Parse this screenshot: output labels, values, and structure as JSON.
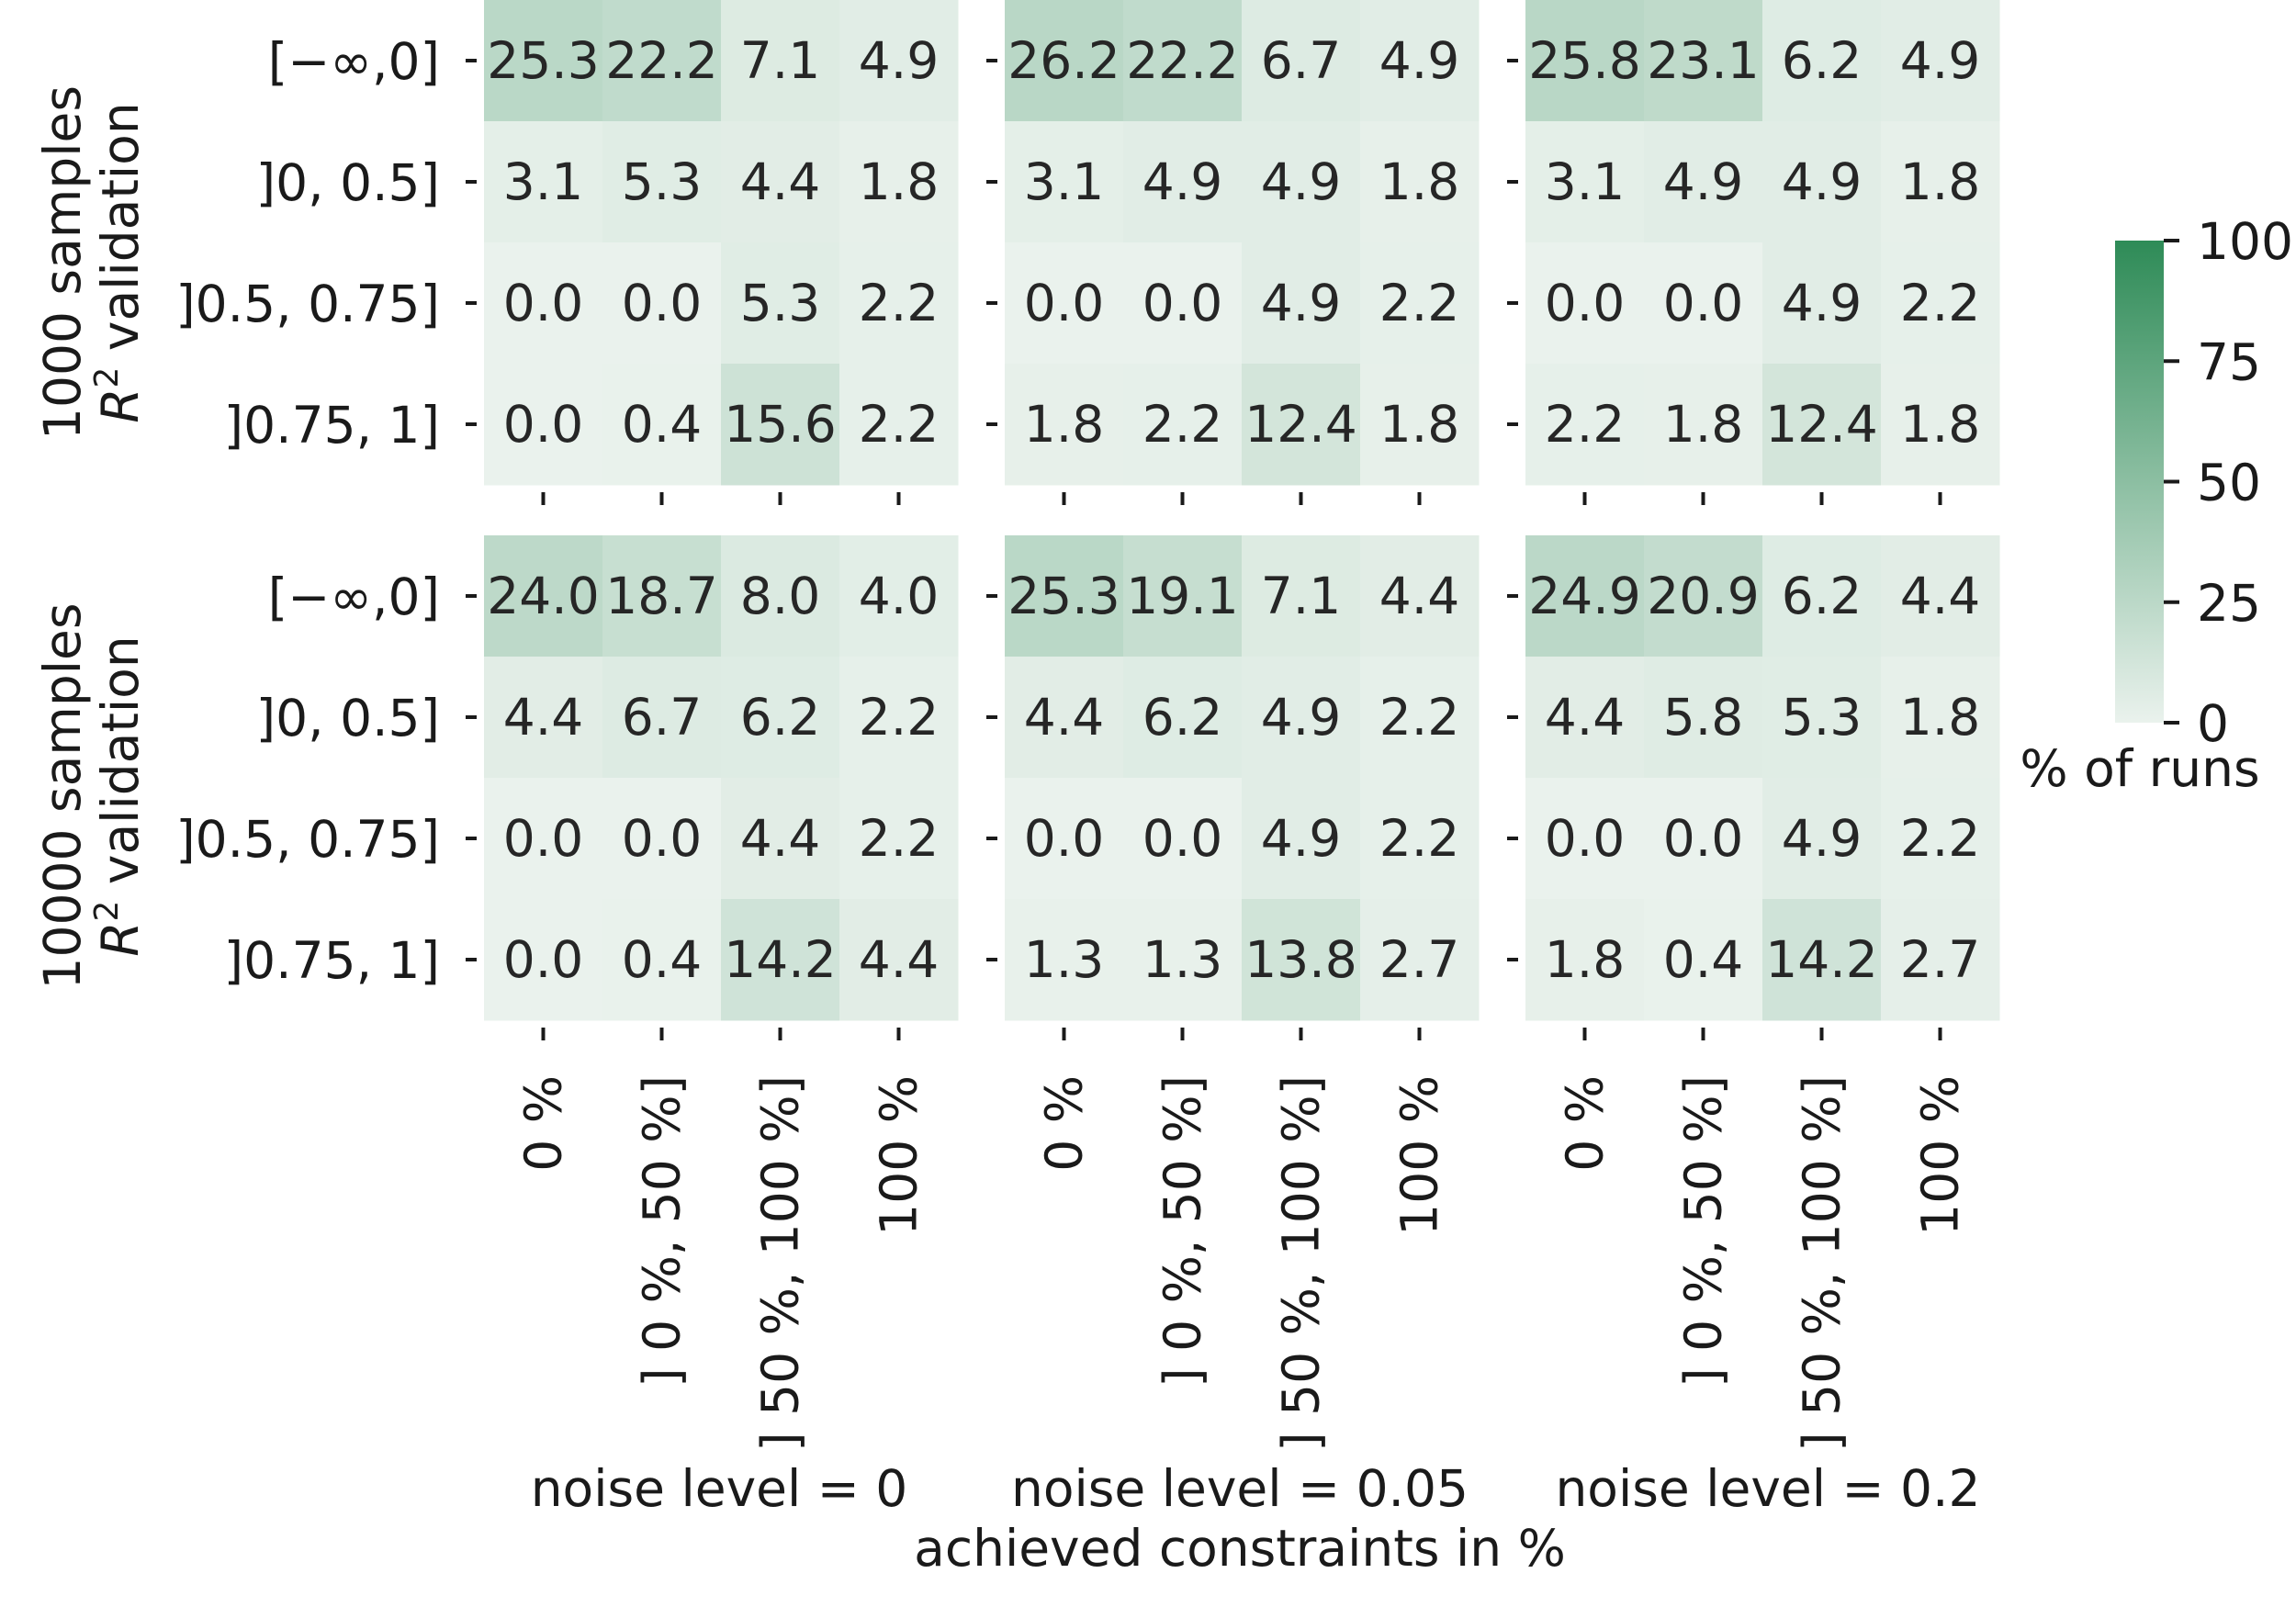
{
  "chart_data": {
    "type": "heatmap",
    "xlabel": "achieved constraints in %",
    "x_tick_labels": [
      "0 %",
      "] 0 %, 50 %]",
      "] 50 %, 100 %]",
      "100 %"
    ],
    "y_tick_labels": [
      "[−∞,0]",
      "]0, 0.5]",
      "]0.5, 0.75]",
      "]0.75, 1]"
    ],
    "col_titles": [
      "noise level = 0",
      "noise level = 0.05",
      "noise level = 0.2"
    ],
    "row_titles": [
      {
        "line1": "1000 samples",
        "line2": "validation"
      },
      {
        "line1": "10000 samples",
        "line2": "validation"
      }
    ],
    "row_title_math": {
      "base": "R",
      "sup": "2"
    },
    "colorbar": {
      "label": "% of runs",
      "ticks": [
        "0",
        "25",
        "50",
        "75",
        "100"
      ],
      "range": [
        0,
        100
      ],
      "color_low": "#eaf2ed",
      "color_high": "#2e8b57"
    },
    "panels": [
      [
        [
          [
            25.3,
            22.2,
            7.1,
            4.9
          ],
          [
            3.1,
            5.3,
            4.4,
            1.8
          ],
          [
            0.0,
            0.0,
            5.3,
            2.2
          ],
          [
            0.0,
            0.4,
            15.6,
            2.2
          ]
        ],
        [
          [
            26.2,
            22.2,
            6.7,
            4.9
          ],
          [
            3.1,
            4.9,
            4.9,
            1.8
          ],
          [
            0.0,
            0.0,
            4.9,
            2.2
          ],
          [
            1.8,
            2.2,
            12.4,
            1.8
          ]
        ],
        [
          [
            25.8,
            23.1,
            6.2,
            4.9
          ],
          [
            3.1,
            4.9,
            4.9,
            1.8
          ],
          [
            0.0,
            0.0,
            4.9,
            2.2
          ],
          [
            2.2,
            1.8,
            12.4,
            1.8
          ]
        ]
      ],
      [
        [
          [
            24.0,
            18.7,
            8.0,
            4.0
          ],
          [
            4.4,
            6.7,
            6.2,
            2.2
          ],
          [
            0.0,
            0.0,
            4.4,
            2.2
          ],
          [
            0.0,
            0.4,
            14.2,
            4.4
          ]
        ],
        [
          [
            25.3,
            19.1,
            7.1,
            4.4
          ],
          [
            4.4,
            6.2,
            4.9,
            2.2
          ],
          [
            0.0,
            0.0,
            4.9,
            2.2
          ],
          [
            1.3,
            1.3,
            13.8,
            2.7
          ]
        ],
        [
          [
            24.9,
            20.9,
            6.2,
            4.4
          ],
          [
            4.4,
            5.8,
            5.3,
            1.8
          ],
          [
            0.0,
            0.0,
            4.9,
            2.2
          ],
          [
            1.8,
            0.4,
            14.2,
            2.7
          ]
        ]
      ]
    ]
  }
}
